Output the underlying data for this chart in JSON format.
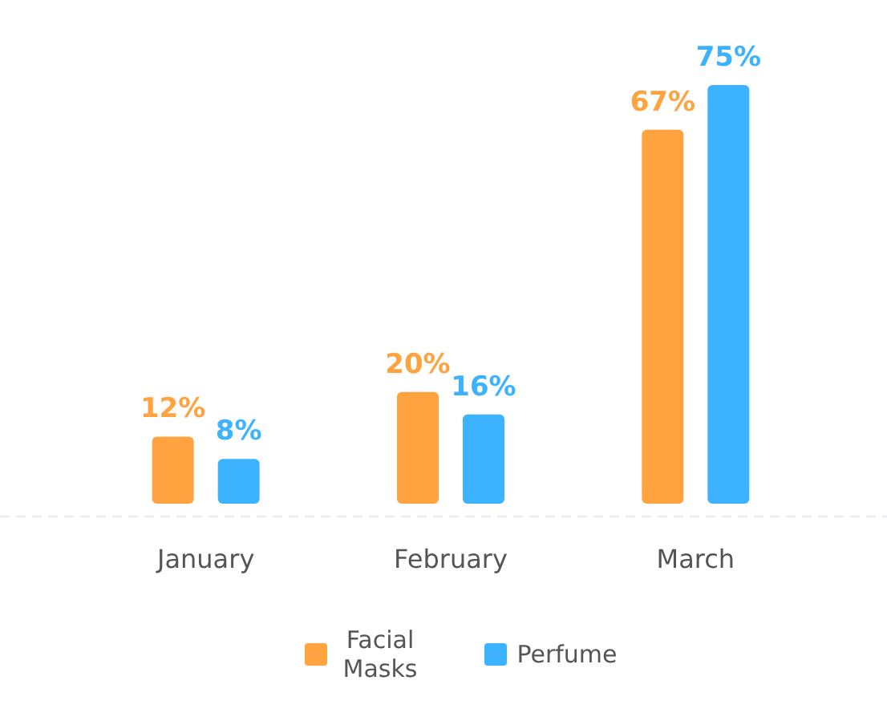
{
  "chart_data": {
    "type": "bar",
    "categories": [
      "January",
      "February",
      "March"
    ],
    "series": [
      {
        "name": "Facial Masks",
        "color": "#ffa340",
        "values": [
          12,
          20,
          67
        ],
        "value_labels": [
          "12%",
          "20%",
          "67%"
        ]
      },
      {
        "name": "Perfume",
        "color": "#3db2ff",
        "values": [
          8,
          16,
          75
        ],
        "value_labels": [
          "8%",
          "16%",
          "75%"
        ]
      }
    ],
    "legend": "bottom",
    "grid": false
  }
}
